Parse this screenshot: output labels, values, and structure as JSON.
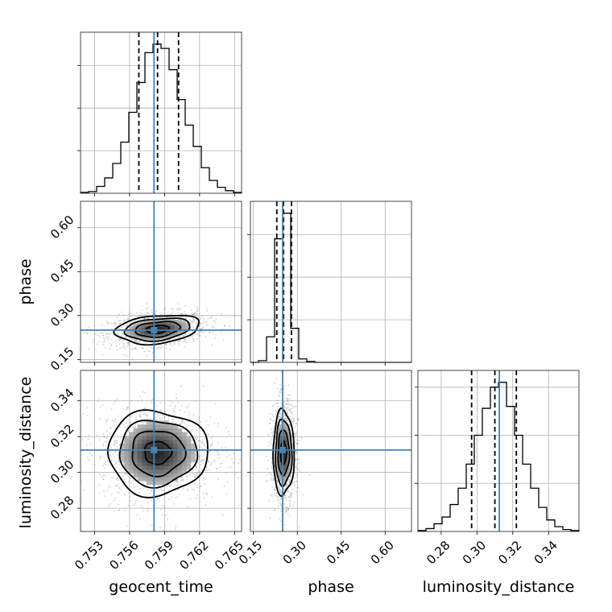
{
  "chart_data": {
    "type": "corner",
    "grid": true,
    "truth_color": "#4682b4",
    "params": [
      {
        "name": "geocent_time",
        "label": "geocent_time",
        "range": [
          0.7518,
          0.7656
        ],
        "ticks": [
          "0.753",
          "0.756",
          "0.759",
          "0.762",
          "0.765"
        ],
        "truth": 0.7581,
        "quantiles": [
          0.7568,
          0.7584,
          0.7602
        ]
      },
      {
        "name": "phase",
        "label": "phase",
        "range": [
          0.14,
          0.69
        ],
        "ticks": [
          "0.15",
          "0.30",
          "0.45",
          "0.60"
        ],
        "truth": 0.25,
        "quantiles": [
          0.23,
          0.253,
          0.28
        ]
      },
      {
        "name": "luminosity_distance",
        "label": "luminosity_distance",
        "range": [
          0.267,
          0.357
        ],
        "ticks": [
          "0.28",
          "0.30",
          "0.32",
          "0.34"
        ],
        "truth": 0.3125,
        "quantiles": [
          0.297,
          0.31,
          0.322
        ]
      }
    ],
    "histograms": [
      {
        "param": "geocent_time",
        "bin_edges_range": [
          0.7518,
          0.7656
        ],
        "counts": [
          1,
          2,
          8,
          18,
          35,
          60,
          95,
          130,
          165,
          175,
          170,
          145,
          110,
          80,
          55,
          30,
          15,
          7,
          3,
          1
        ]
      },
      {
        "param": "phase",
        "bin_edges_range": [
          0.14,
          0.69
        ],
        "counts": [
          0,
          2,
          30,
          145,
          175,
          40,
          4,
          1,
          0,
          0,
          0,
          0,
          0,
          0,
          0,
          0,
          0,
          0,
          0,
          0
        ]
      },
      {
        "param": "luminosity_distance",
        "bin_edges_range": [
          0.267,
          0.357
        ],
        "counts": [
          1,
          3,
          8,
          15,
          28,
          45,
          70,
          100,
          128,
          150,
          155,
          130,
          100,
          70,
          45,
          25,
          12,
          5,
          2,
          1
        ]
      }
    ],
    "contour_panels": [
      {
        "x": "geocent_time",
        "y": "phase",
        "center": [
          0.7584,
          0.253
        ],
        "sigma": [
          0.0016,
          0.022
        ],
        "rho": 0.25
      },
      {
        "x": "geocent_time",
        "y": "luminosity_distance",
        "center": [
          0.7584,
          0.311
        ],
        "sigma": [
          0.0019,
          0.0105
        ],
        "rho": 0
      },
      {
        "x": "phase",
        "y": "luminosity_distance",
        "center": [
          0.253,
          0.311
        ],
        "sigma": [
          0.016,
          0.0105
        ],
        "rho": 0
      }
    ]
  }
}
